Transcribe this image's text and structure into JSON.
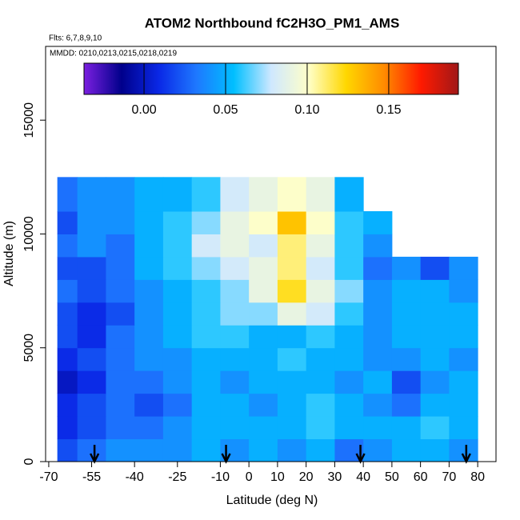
{
  "chart_data": {
    "type": "heatmap",
    "title": "ATOM2 Northbound fC2H3O_PM1_AMS",
    "subtitle": "Flts: 6,7,8,9,10",
    "annotation": "MMDD: 0210,0213,0215,0218,0219",
    "x_label": "Latitude (deg N)",
    "y_label": "Altitude (m)",
    "xlim": [
      -71.1,
      86.4
    ],
    "ylim": [
      0,
      18240
    ],
    "xticks": [
      -70,
      -55,
      -40,
      -25,
      -10,
      0,
      10,
      20,
      30,
      40,
      50,
      60,
      70,
      80
    ],
    "yticks": [
      0,
      5000,
      10000,
      15000
    ],
    "x_bins": [
      -67,
      -60,
      -50,
      -40,
      -30,
      -20,
      -10,
      0,
      10,
      20,
      30,
      40,
      50,
      60,
      70,
      80
    ],
    "y_bins": [
      0,
      1000,
      2000,
      3000,
      4000,
      5000,
      6000,
      7000,
      8000,
      9000,
      10000,
      11000,
      12500
    ],
    "values": [
      [
        0.02,
        0.03,
        0.04,
        0.04,
        0.04,
        0.05,
        0.04,
        0.05,
        0.04,
        0.05,
        0.03,
        0.04,
        0.05,
        0.05,
        0.04
      ],
      [
        0.01,
        0.02,
        0.03,
        0.03,
        0.04,
        0.05,
        0.05,
        0.05,
        0.05,
        0.06,
        0.05,
        0.05,
        0.05,
        0.06,
        0.05
      ],
      [
        0.01,
        0.02,
        0.03,
        0.02,
        0.03,
        0.05,
        0.05,
        0.04,
        0.05,
        0.06,
        0.05,
        0.04,
        0.03,
        0.05,
        0.05
      ],
      [
        0.0,
        0.01,
        0.03,
        0.03,
        0.04,
        0.05,
        0.04,
        0.05,
        0.05,
        0.05,
        0.04,
        0.05,
        0.02,
        0.04,
        0.05
      ],
      [
        0.01,
        0.02,
        0.03,
        0.04,
        0.04,
        0.05,
        0.05,
        0.05,
        0.06,
        0.05,
        0.05,
        0.04,
        0.04,
        0.05,
        0.04
      ],
      [
        0.02,
        0.01,
        0.03,
        0.04,
        0.05,
        0.06,
        0.06,
        0.05,
        0.05,
        0.06,
        0.05,
        0.04,
        0.05,
        0.05,
        0.05
      ],
      [
        0.02,
        0.01,
        0.02,
        0.04,
        0.05,
        0.06,
        0.07,
        0.07,
        0.09,
        0.08,
        0.06,
        0.04,
        0.05,
        0.05,
        0.05
      ],
      [
        0.03,
        0.02,
        0.03,
        0.04,
        0.05,
        0.06,
        0.07,
        0.09,
        0.12,
        0.09,
        0.07,
        0.04,
        0.05,
        0.05,
        0.04
      ],
      [
        0.02,
        0.02,
        0.03,
        0.05,
        0.06,
        0.07,
        0.08,
        0.09,
        0.11,
        0.08,
        0.06,
        0.03,
        0.04,
        0.02,
        0.04
      ],
      [
        0.03,
        0.04,
        0.03,
        0.05,
        0.06,
        0.08,
        0.09,
        0.08,
        0.11,
        0.09,
        0.06,
        0.04,
        null,
        null,
        null
      ],
      [
        0.02,
        0.04,
        0.04,
        0.05,
        0.06,
        0.07,
        0.09,
        0.1,
        0.13,
        0.1,
        0.06,
        0.05,
        null,
        null,
        null
      ],
      [
        0.03,
        0.04,
        0.04,
        0.05,
        0.05,
        0.06,
        0.08,
        0.09,
        0.1,
        0.09,
        0.05,
        null,
        null,
        null,
        null
      ]
    ],
    "clim": [
      -0.0368,
      0.1927
    ],
    "cticks": [
      {
        "value": 0,
        "label": "0.00"
      },
      {
        "value": 0.05,
        "label": "0.05"
      },
      {
        "value": 0.1,
        "label": "0.10"
      },
      {
        "value": 0.15,
        "label": "0.15"
      }
    ],
    "colormap": [
      "#7b1fe0",
      "#00008b",
      "#0a28e6",
      "#1e78ff",
      "#00bfff",
      "#cfe8ff",
      "#ffffc8",
      "#ffd700",
      "#ff8c00",
      "#ff1a00",
      "#a01818"
    ],
    "arrows": [
      -54,
      -8,
      39,
      76
    ]
  }
}
